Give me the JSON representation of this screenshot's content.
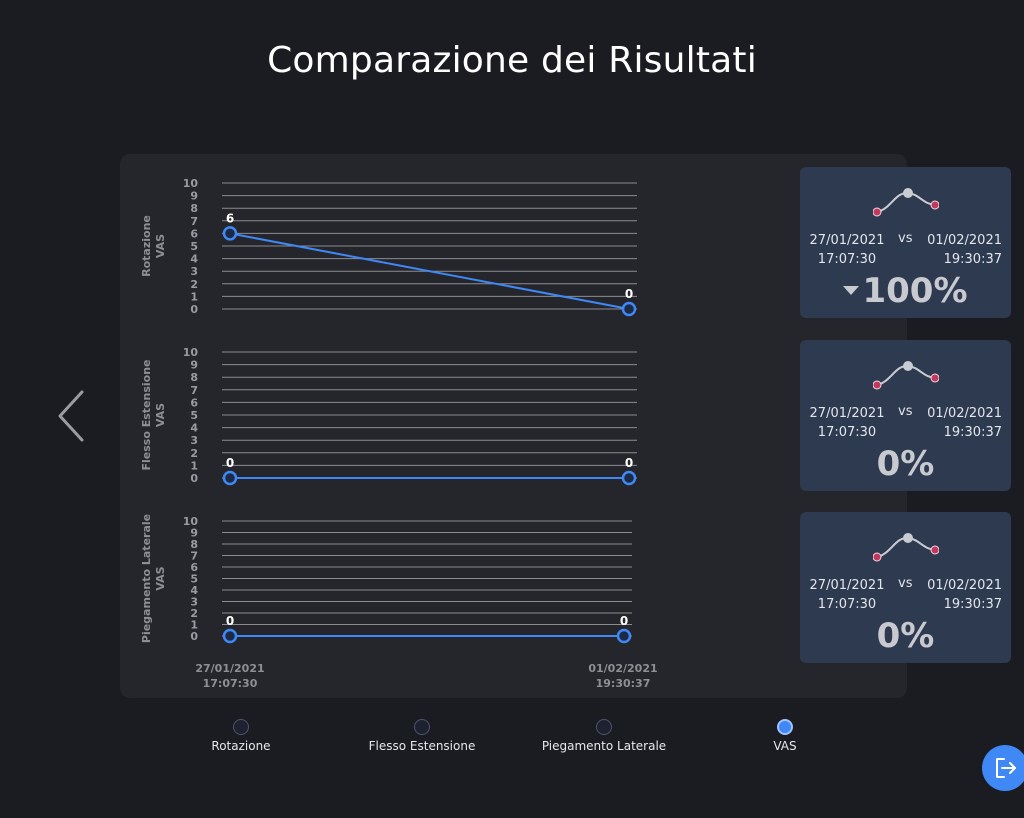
{
  "page": {
    "title": "Comparazione dei Risultati"
  },
  "charts": [
    {
      "title_line1": "Rotazione",
      "title_line2": "VAS",
      "yticks": [
        "10",
        "9",
        "8",
        "7",
        "6",
        "5",
        "4",
        "3",
        "2",
        "1",
        "0"
      ],
      "points": [
        {
          "label": "6",
          "value": 6
        },
        {
          "label": "0",
          "value": 0
        }
      ]
    },
    {
      "title_line1": "Flesso Estensione",
      "title_line2": "VAS",
      "yticks": [
        "10",
        "9",
        "8",
        "7",
        "6",
        "5",
        "4",
        "3",
        "2",
        "1",
        "0"
      ],
      "points": [
        {
          "label": "0",
          "value": 0
        },
        {
          "label": "0",
          "value": 0
        }
      ]
    },
    {
      "title_line1": "Piegamento Laterale",
      "title_line2": "VAS",
      "yticks": [
        "10",
        "9",
        "8",
        "7",
        "6",
        "5",
        "4",
        "3",
        "2",
        "1",
        "0"
      ],
      "points": [
        {
          "label": "0",
          "value": 0
        },
        {
          "label": "0",
          "value": 0
        }
      ]
    }
  ],
  "chart_data": [
    {
      "type": "line",
      "ylabel": "Rotazione VAS",
      "x": [
        "27/01/2021 17:07:30",
        "01/02/2021 19:30:37"
      ],
      "series": [
        {
          "values": [
            6,
            0
          ]
        }
      ],
      "ylim": [
        0,
        10
      ]
    },
    {
      "type": "line",
      "ylabel": "Flesso Estensione VAS",
      "x": [
        "27/01/2021 17:07:30",
        "01/02/2021 19:30:37"
      ],
      "series": [
        {
          "values": [
            0,
            0
          ]
        }
      ],
      "ylim": [
        0,
        10
      ]
    },
    {
      "type": "line",
      "ylabel": "Piegamento Laterale VAS",
      "x": [
        "27/01/2021 17:07:30",
        "01/02/2021 19:30:37"
      ],
      "series": [
        {
          "values": [
            0,
            0
          ]
        }
      ],
      "ylim": [
        0,
        10
      ]
    }
  ],
  "xaxis": {
    "left_date": "27/01/2021",
    "left_time": "17:07:30",
    "right_date": "01/02/2021",
    "right_time": "19:30:37"
  },
  "cards": [
    {
      "date_a": "27/01/2021\n17:07:30",
      "vs": "vs",
      "date_b": "01/02/2021\n19:30:37",
      "percent": "100%",
      "direction": "down"
    },
    {
      "date_a": "27/01/2021\n17:07:30",
      "vs": "vs",
      "date_b": "01/02/2021\n19:30:37",
      "percent": "0%",
      "direction": "none"
    },
    {
      "date_a": "27/01/2021\n17:07:30",
      "vs": "vs",
      "date_b": "01/02/2021\n19:30:37",
      "percent": "0%",
      "direction": "none"
    }
  ],
  "legend": [
    {
      "label": "Rotazione",
      "active": false
    },
    {
      "label": "Flesso Estensione",
      "active": false
    },
    {
      "label": "Piegamento Laterale",
      "active": false
    },
    {
      "label": "VAS",
      "active": true
    }
  ],
  "icons": {
    "prev": "chevron-left-icon",
    "trend": "trend-curve-icon",
    "exit": "logout-icon"
  },
  "colors": {
    "background": "#1b1c21",
    "panel": "#25262b",
    "card": "#2d3a50",
    "line": "#3f88f5",
    "accent_point": "#c2385f"
  }
}
